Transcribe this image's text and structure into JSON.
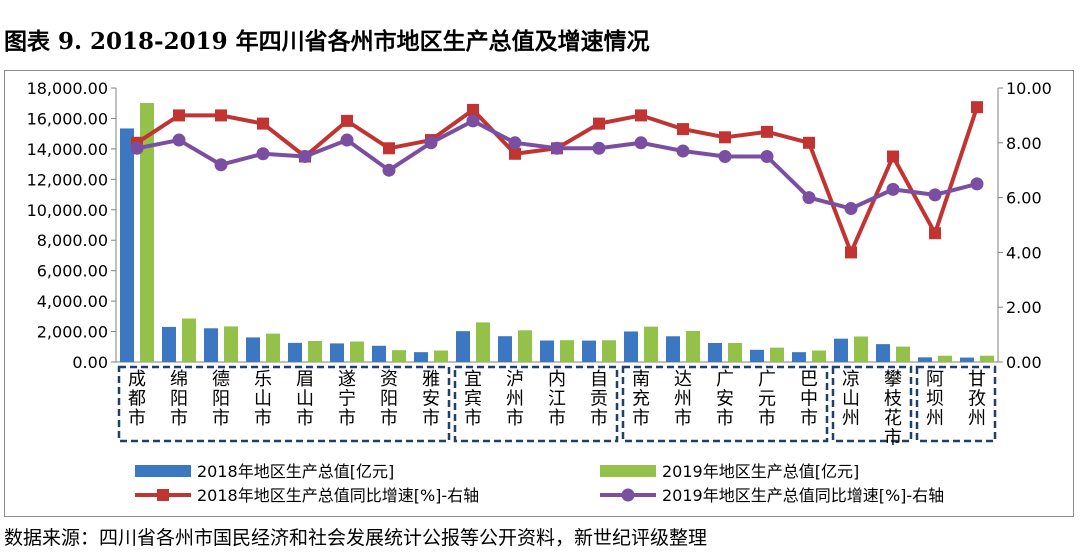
{
  "title": "图表 9. 2018-2019 年四川省各州市地区生产总值及增速情况",
  "source": "数据来源：四川省各州市国民经济和社会发展统计公报等公开资料，新世纪评级整理",
  "chart_data": {
    "type": "bar+line",
    "categories": [
      "成都市",
      "绵阳市",
      "德阳市",
      "乐山市",
      "眉山市",
      "遂宁市",
      "资阳市",
      "雅安市",
      "宜宾市",
      "泸州市",
      "内江市",
      "自贡市",
      "南充市",
      "达州市",
      "广安市",
      "广元市",
      "巴中市",
      "凉山州",
      "攀枝花市",
      "阿坝州",
      "甘孜州"
    ],
    "groups": [
      [
        0,
        7
      ],
      [
        8,
        11
      ],
      [
        12,
        16
      ],
      [
        17,
        18
      ],
      [
        19,
        20
      ]
    ],
    "y_left": {
      "min": 0,
      "max": 18000,
      "step": 2000,
      "ticks": [
        "0.00",
        "2,000.00",
        "4,000.00",
        "6,000.00",
        "8,000.00",
        "10,000.00",
        "12,000.00",
        "14,000.00",
        "16,000.00",
        "18,000.00"
      ]
    },
    "y_right": {
      "min": 0,
      "max": 10,
      "step": 2,
      "ticks": [
        "0.00",
        "2.00",
        "4.00",
        "6.00",
        "8.00",
        "10.00"
      ]
    },
    "colors": {
      "bar2018": "#3b78c1",
      "bar2019": "#93c14a",
      "line2018": "#c23431",
      "line2019": "#7a4fa2",
      "group_border": "#1f3f6e"
    },
    "series": [
      {
        "name": "2018年地区生产总值[亿元]",
        "type": "bar",
        "axis": "left",
        "values": [
          15343,
          2304,
          2214,
          1615,
          1256,
          1221,
          1066,
          647,
          2026,
          1695,
          1412,
          1407,
          2006,
          1690,
          1250,
          801,
          646,
          1533,
          1174,
          306,
          291
        ]
      },
      {
        "name": "2019年地区生产总值[亿元]",
        "type": "bar",
        "axis": "left",
        "values": [
          17013,
          2856,
          2336,
          1863,
          1380,
          1346,
          778,
          754,
          2602,
          2081,
          1433,
          1428,
          2322,
          2041,
          1250,
          941,
          754,
          1676,
          1010,
          411,
          411
        ]
      },
      {
        "name": "2018年地区生产总值同比增速[%]-右轴",
        "type": "line",
        "axis": "right",
        "values": [
          8.0,
          9.0,
          9.0,
          8.7,
          7.5,
          8.8,
          7.8,
          8.1,
          9.2,
          7.6,
          7.8,
          8.7,
          9.0,
          8.5,
          8.2,
          8.4,
          8.0,
          4.0,
          7.5,
          4.7,
          9.3
        ]
      },
      {
        "name": "2019年地区生产总值同比增速[%]-右轴",
        "type": "line",
        "axis": "right",
        "values": [
          7.8,
          8.1,
          7.2,
          7.6,
          7.5,
          8.1,
          7.0,
          8.0,
          8.8,
          8.0,
          7.8,
          7.8,
          8.0,
          7.7,
          7.5,
          7.5,
          6.0,
          5.6,
          6.3,
          6.1,
          6.5
        ]
      }
    ]
  }
}
